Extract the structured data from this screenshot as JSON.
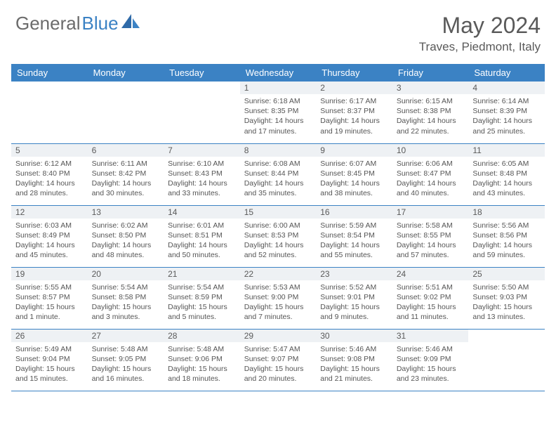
{
  "brand": {
    "part1": "General",
    "part2": "Blue"
  },
  "title": "May 2024",
  "location": "Traves, Piedmont, Italy",
  "colors": {
    "header_bg": "#3b82c4",
    "header_text": "#ffffff",
    "daynum_bg": "#eef1f4",
    "text": "#555555",
    "rule": "#3b82c4"
  },
  "dayHeaders": [
    "Sunday",
    "Monday",
    "Tuesday",
    "Wednesday",
    "Thursday",
    "Friday",
    "Saturday"
  ],
  "weeks": [
    [
      {
        "n": "",
        "lines": []
      },
      {
        "n": "",
        "lines": []
      },
      {
        "n": "",
        "lines": []
      },
      {
        "n": "1",
        "lines": [
          "Sunrise: 6:18 AM",
          "Sunset: 8:35 PM",
          "Daylight: 14 hours",
          "and 17 minutes."
        ]
      },
      {
        "n": "2",
        "lines": [
          "Sunrise: 6:17 AM",
          "Sunset: 8:37 PM",
          "Daylight: 14 hours",
          "and 19 minutes."
        ]
      },
      {
        "n": "3",
        "lines": [
          "Sunrise: 6:15 AM",
          "Sunset: 8:38 PM",
          "Daylight: 14 hours",
          "and 22 minutes."
        ]
      },
      {
        "n": "4",
        "lines": [
          "Sunrise: 6:14 AM",
          "Sunset: 8:39 PM",
          "Daylight: 14 hours",
          "and 25 minutes."
        ]
      }
    ],
    [
      {
        "n": "5",
        "lines": [
          "Sunrise: 6:12 AM",
          "Sunset: 8:40 PM",
          "Daylight: 14 hours",
          "and 28 minutes."
        ]
      },
      {
        "n": "6",
        "lines": [
          "Sunrise: 6:11 AM",
          "Sunset: 8:42 PM",
          "Daylight: 14 hours",
          "and 30 minutes."
        ]
      },
      {
        "n": "7",
        "lines": [
          "Sunrise: 6:10 AM",
          "Sunset: 8:43 PM",
          "Daylight: 14 hours",
          "and 33 minutes."
        ]
      },
      {
        "n": "8",
        "lines": [
          "Sunrise: 6:08 AM",
          "Sunset: 8:44 PM",
          "Daylight: 14 hours",
          "and 35 minutes."
        ]
      },
      {
        "n": "9",
        "lines": [
          "Sunrise: 6:07 AM",
          "Sunset: 8:45 PM",
          "Daylight: 14 hours",
          "and 38 minutes."
        ]
      },
      {
        "n": "10",
        "lines": [
          "Sunrise: 6:06 AM",
          "Sunset: 8:47 PM",
          "Daylight: 14 hours",
          "and 40 minutes."
        ]
      },
      {
        "n": "11",
        "lines": [
          "Sunrise: 6:05 AM",
          "Sunset: 8:48 PM",
          "Daylight: 14 hours",
          "and 43 minutes."
        ]
      }
    ],
    [
      {
        "n": "12",
        "lines": [
          "Sunrise: 6:03 AM",
          "Sunset: 8:49 PM",
          "Daylight: 14 hours",
          "and 45 minutes."
        ]
      },
      {
        "n": "13",
        "lines": [
          "Sunrise: 6:02 AM",
          "Sunset: 8:50 PM",
          "Daylight: 14 hours",
          "and 48 minutes."
        ]
      },
      {
        "n": "14",
        "lines": [
          "Sunrise: 6:01 AM",
          "Sunset: 8:51 PM",
          "Daylight: 14 hours",
          "and 50 minutes."
        ]
      },
      {
        "n": "15",
        "lines": [
          "Sunrise: 6:00 AM",
          "Sunset: 8:53 PM",
          "Daylight: 14 hours",
          "and 52 minutes."
        ]
      },
      {
        "n": "16",
        "lines": [
          "Sunrise: 5:59 AM",
          "Sunset: 8:54 PM",
          "Daylight: 14 hours",
          "and 55 minutes."
        ]
      },
      {
        "n": "17",
        "lines": [
          "Sunrise: 5:58 AM",
          "Sunset: 8:55 PM",
          "Daylight: 14 hours",
          "and 57 minutes."
        ]
      },
      {
        "n": "18",
        "lines": [
          "Sunrise: 5:56 AM",
          "Sunset: 8:56 PM",
          "Daylight: 14 hours",
          "and 59 minutes."
        ]
      }
    ],
    [
      {
        "n": "19",
        "lines": [
          "Sunrise: 5:55 AM",
          "Sunset: 8:57 PM",
          "Daylight: 15 hours",
          "and 1 minute."
        ]
      },
      {
        "n": "20",
        "lines": [
          "Sunrise: 5:54 AM",
          "Sunset: 8:58 PM",
          "Daylight: 15 hours",
          "and 3 minutes."
        ]
      },
      {
        "n": "21",
        "lines": [
          "Sunrise: 5:54 AM",
          "Sunset: 8:59 PM",
          "Daylight: 15 hours",
          "and 5 minutes."
        ]
      },
      {
        "n": "22",
        "lines": [
          "Sunrise: 5:53 AM",
          "Sunset: 9:00 PM",
          "Daylight: 15 hours",
          "and 7 minutes."
        ]
      },
      {
        "n": "23",
        "lines": [
          "Sunrise: 5:52 AM",
          "Sunset: 9:01 PM",
          "Daylight: 15 hours",
          "and 9 minutes."
        ]
      },
      {
        "n": "24",
        "lines": [
          "Sunrise: 5:51 AM",
          "Sunset: 9:02 PM",
          "Daylight: 15 hours",
          "and 11 minutes."
        ]
      },
      {
        "n": "25",
        "lines": [
          "Sunrise: 5:50 AM",
          "Sunset: 9:03 PM",
          "Daylight: 15 hours",
          "and 13 minutes."
        ]
      }
    ],
    [
      {
        "n": "26",
        "lines": [
          "Sunrise: 5:49 AM",
          "Sunset: 9:04 PM",
          "Daylight: 15 hours",
          "and 15 minutes."
        ]
      },
      {
        "n": "27",
        "lines": [
          "Sunrise: 5:48 AM",
          "Sunset: 9:05 PM",
          "Daylight: 15 hours",
          "and 16 minutes."
        ]
      },
      {
        "n": "28",
        "lines": [
          "Sunrise: 5:48 AM",
          "Sunset: 9:06 PM",
          "Daylight: 15 hours",
          "and 18 minutes."
        ]
      },
      {
        "n": "29",
        "lines": [
          "Sunrise: 5:47 AM",
          "Sunset: 9:07 PM",
          "Daylight: 15 hours",
          "and 20 minutes."
        ]
      },
      {
        "n": "30",
        "lines": [
          "Sunrise: 5:46 AM",
          "Sunset: 9:08 PM",
          "Daylight: 15 hours",
          "and 21 minutes."
        ]
      },
      {
        "n": "31",
        "lines": [
          "Sunrise: 5:46 AM",
          "Sunset: 9:09 PM",
          "Daylight: 15 hours",
          "and 23 minutes."
        ]
      },
      {
        "n": "",
        "lines": []
      }
    ]
  ]
}
